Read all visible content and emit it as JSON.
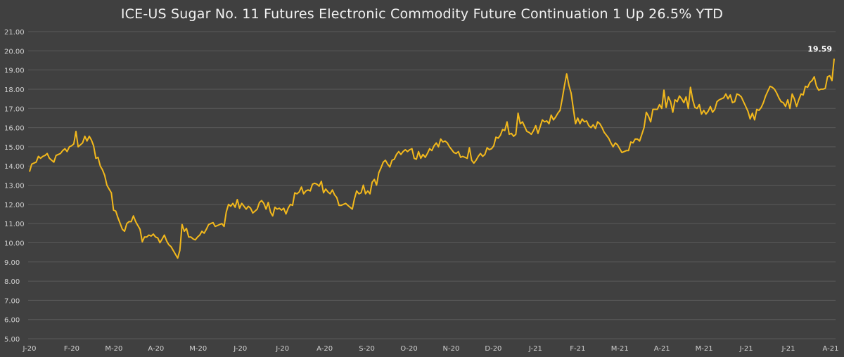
{
  "chart_data": {
    "type": "line",
    "title": "ICE-US Sugar No. 11 Futures Electronic Commodity Future Continuation 1 Up 26.5% YTD",
    "xlabel": "",
    "ylabel": "",
    "ylim": [
      5,
      21
    ],
    "y_ticks": [
      "21.00",
      "20.00",
      "19.00",
      "18.00",
      "17.00",
      "16.00",
      "15.00",
      "14.00",
      "13.00",
      "12.00",
      "11.00",
      "10.00",
      "9.00",
      "8.00",
      "7.00",
      "6.00",
      "5.00"
    ],
    "x_ticks": [
      "J-20",
      "F-20",
      "M-20",
      "A-20",
      "M-20",
      "J-20",
      "J-20",
      "A-20",
      "S-20",
      "O-20",
      "N-20",
      "D-20",
      "J-21",
      "F-21",
      "M-21",
      "A-21",
      "M-21",
      "J-21",
      "J-21",
      "A-21"
    ],
    "grid": true,
    "colors": {
      "background": "#404040",
      "line": "#f2b81c",
      "grid": "#5a5a5a",
      "text": "#d0d0d0"
    },
    "end_label": "19.59",
    "series": [
      {
        "values": [
          13.7,
          14.1,
          14.15,
          14.2,
          14.5,
          14.4,
          14.5,
          14.55,
          14.65,
          14.4,
          14.3,
          14.2,
          14.55,
          14.6,
          14.65,
          14.8,
          14.9,
          14.75,
          15.0,
          15.05,
          15.15,
          15.8,
          15.0,
          15.1,
          15.2,
          15.55,
          15.3,
          15.55,
          15.35,
          15.05,
          14.4,
          14.45,
          14.0,
          13.8,
          13.5,
          13.0,
          12.8,
          12.6,
          11.7,
          11.65,
          11.3,
          11.0,
          10.7,
          10.6,
          11.0,
          11.1,
          11.1,
          11.4,
          11.1,
          10.9,
          10.7,
          10.05,
          10.3,
          10.3,
          10.4,
          10.35,
          10.45,
          10.3,
          10.25,
          10.0,
          10.2,
          10.4,
          10.1,
          9.9,
          9.8,
          9.6,
          9.4,
          9.2,
          9.6,
          10.95,
          10.6,
          10.75,
          10.3,
          10.3,
          10.2,
          10.15,
          10.3,
          10.4,
          10.6,
          10.5,
          10.7,
          10.95,
          11.0,
          11.05,
          10.85,
          10.9,
          10.95,
          11.0,
          10.85,
          11.6,
          12.0,
          11.9,
          12.05,
          11.85,
          12.25,
          11.8,
          12.05,
          11.9,
          11.75,
          11.9,
          11.8,
          11.55,
          11.65,
          11.75,
          12.1,
          12.2,
          12.05,
          11.75,
          12.1,
          11.6,
          11.4,
          11.85,
          11.75,
          11.8,
          11.7,
          11.8,
          11.5,
          11.8,
          12.0,
          11.95,
          12.6,
          12.55,
          12.65,
          12.9,
          12.55,
          12.7,
          12.75,
          12.7,
          13.05,
          13.1,
          13.05,
          12.95,
          13.2,
          12.6,
          12.8,
          12.65,
          12.55,
          12.75,
          12.5,
          12.35,
          11.95,
          11.95,
          12.0,
          12.05,
          11.95,
          11.85,
          11.75,
          12.3,
          12.7,
          12.55,
          12.6,
          13.0,
          12.55,
          12.7,
          12.55,
          13.15,
          13.3,
          13.0,
          13.65,
          13.9,
          14.2,
          14.3,
          14.1,
          13.95,
          14.3,
          14.35,
          14.6,
          14.75,
          14.6,
          14.75,
          14.85,
          14.75,
          14.85,
          14.9,
          14.4,
          14.35,
          14.75,
          14.4,
          14.6,
          14.45,
          14.65,
          14.9,
          14.8,
          15.05,
          15.2,
          15.0,
          15.4,
          15.25,
          15.3,
          15.2,
          15.0,
          14.85,
          14.7,
          14.65,
          14.75,
          14.45,
          14.5,
          14.45,
          14.4,
          14.95,
          14.3,
          14.15,
          14.3,
          14.5,
          14.65,
          14.5,
          14.6,
          14.95,
          14.85,
          14.9,
          15.05,
          15.5,
          15.45,
          15.6,
          15.9,
          15.85,
          16.3,
          15.65,
          15.7,
          15.55,
          15.65,
          16.75,
          16.2,
          16.3,
          16.05,
          15.8,
          15.75,
          15.65,
          15.85,
          16.1,
          15.7,
          16.05,
          16.4,
          16.3,
          16.35,
          16.2,
          16.65,
          16.4,
          16.55,
          16.75,
          16.9,
          17.5,
          18.2,
          18.8,
          18.2,
          17.8,
          17.0,
          16.2,
          16.5,
          16.2,
          16.45,
          16.3,
          16.35,
          16.1,
          16.0,
          16.15,
          15.95,
          16.3,
          16.2,
          16.0,
          15.75,
          15.6,
          15.45,
          15.2,
          15.0,
          15.2,
          15.1,
          14.9,
          14.7,
          14.75,
          14.8,
          14.8,
          15.25,
          15.2,
          15.4,
          15.4,
          15.3,
          15.65,
          16.0,
          16.8,
          16.6,
          16.3,
          16.95,
          16.95,
          16.95,
          17.2,
          17.0,
          17.95,
          17.05,
          17.6,
          17.35,
          16.8,
          17.45,
          17.35,
          17.65,
          17.5,
          17.3,
          17.6,
          17.0,
          18.1,
          17.45,
          17.05,
          17.0,
          17.2,
          16.7,
          16.9,
          16.7,
          16.85,
          17.1,
          16.8,
          16.95,
          17.35,
          17.45,
          17.5,
          17.55,
          17.75,
          17.5,
          17.7,
          17.3,
          17.35,
          17.75,
          17.7,
          17.6,
          17.35,
          17.1,
          16.85,
          16.45,
          16.75,
          16.4,
          16.95,
          16.9,
          17.05,
          17.3,
          17.65,
          17.9,
          18.15,
          18.1,
          18.0,
          17.8,
          17.55,
          17.35,
          17.3,
          17.1,
          17.45,
          17.0,
          17.75,
          17.5,
          17.1,
          17.45,
          17.75,
          17.7,
          18.15,
          18.1,
          18.35,
          18.45,
          18.65,
          18.15,
          17.95,
          18.0,
          18.0,
          18.05,
          18.65,
          18.7,
          18.45,
          19.59
        ]
      }
    ]
  }
}
